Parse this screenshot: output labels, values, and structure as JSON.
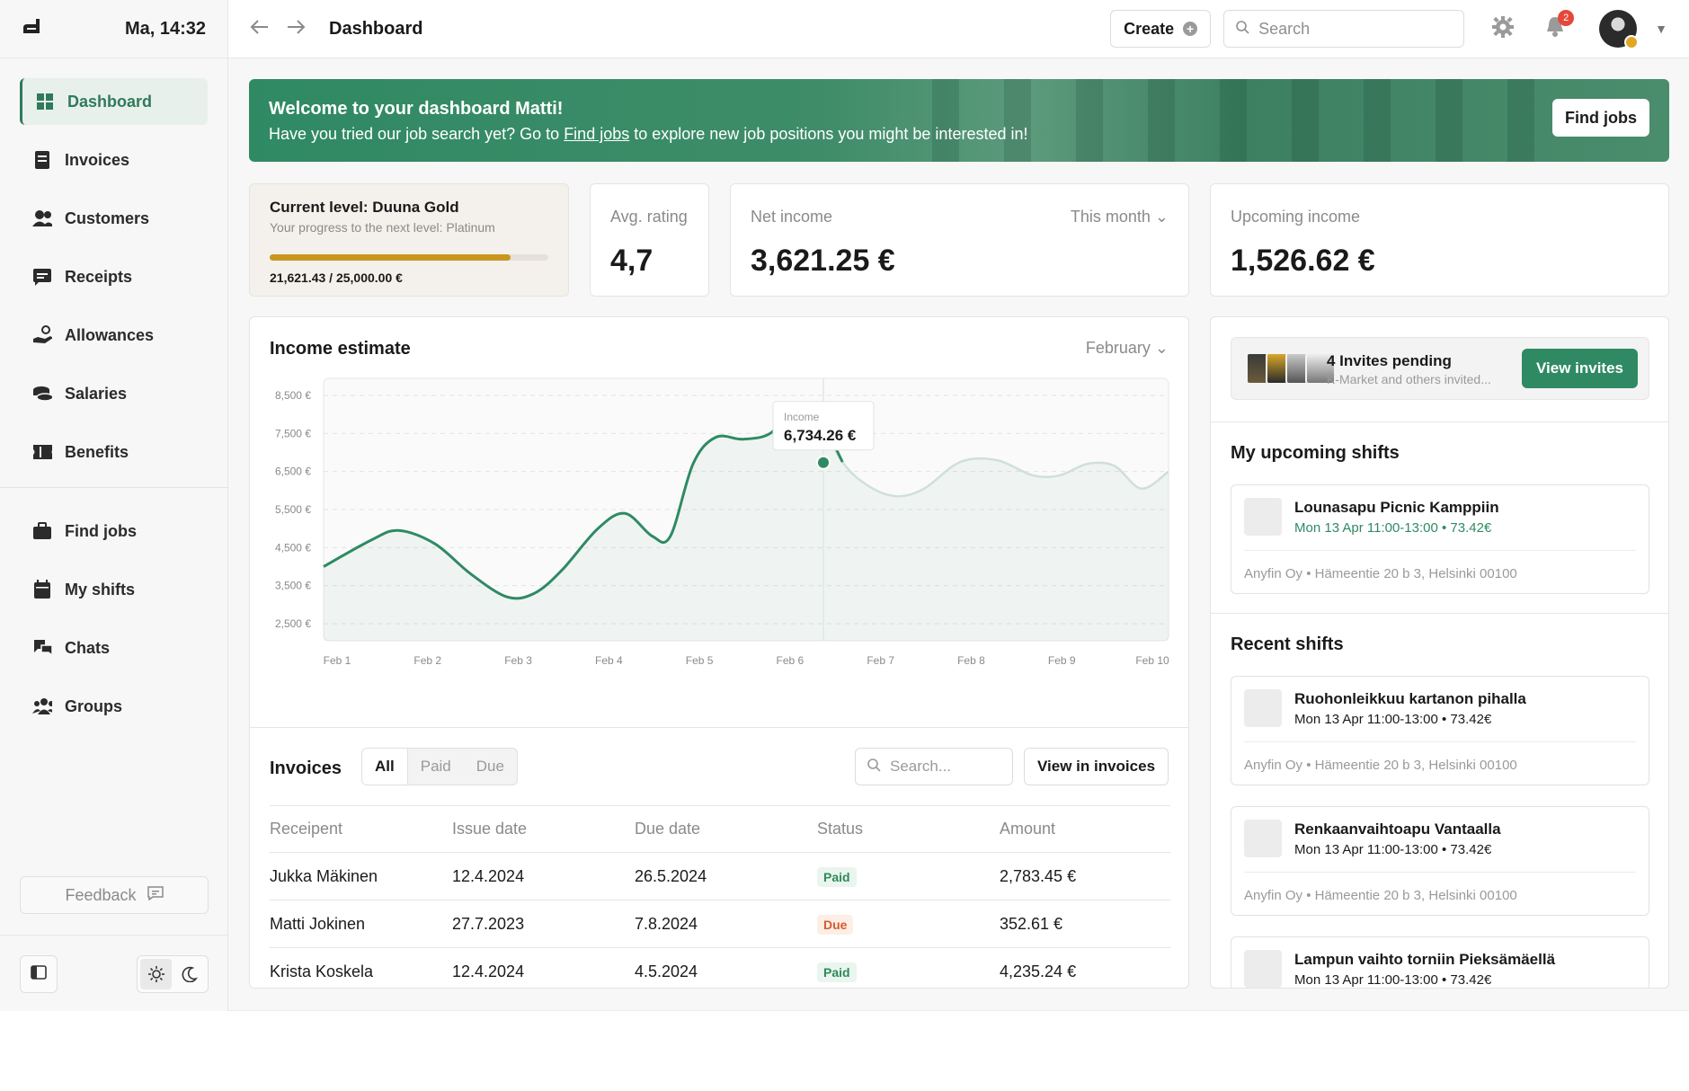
{
  "sidebar": {
    "clock": "Ma, 14:32",
    "items": [
      {
        "label": "Dashboard"
      },
      {
        "label": "Invoices"
      },
      {
        "label": "Customers"
      },
      {
        "label": "Receipts"
      },
      {
        "label": "Allowances"
      },
      {
        "label": "Salaries"
      },
      {
        "label": "Benefits"
      }
    ],
    "items2": [
      {
        "label": "Find jobs"
      },
      {
        "label": "My shifts"
      },
      {
        "label": "Chats"
      },
      {
        "label": "Groups"
      }
    ],
    "feedback": "Feedback"
  },
  "topbar": {
    "title": "Dashboard",
    "create": "Create",
    "search_placeholder": "Search",
    "notifications_count": "2"
  },
  "banner": {
    "title": "Welcome to your dashboard Matti!",
    "text_before": "Have you tried our job search yet? Go to ",
    "link": "Find jobs",
    "text_after": " to explore new job positions you might be interested in!",
    "button": "Find jobs"
  },
  "level": {
    "title": "Current level: Duuna Gold",
    "subtitle": "Your progress to the next level: Platinum",
    "progress": 0.865,
    "value": "21,621.43 / 25,000.00 €"
  },
  "stats": {
    "rating_label": "Avg. rating",
    "rating_value": "4,7",
    "net_label": "Net income",
    "net_period": "This month",
    "net_value": "3,621.25 €",
    "upcoming_label": "Upcoming income",
    "upcoming_value": "1,526.62 €"
  },
  "income": {
    "title": "Income estimate",
    "period": "February",
    "tooltip_label": "Income",
    "tooltip_value": "6,734.26 €"
  },
  "chart_data": {
    "type": "area",
    "title": "Income estimate",
    "x_ticks": [
      "Feb 1",
      "Feb 2",
      "Feb 3",
      "Feb 4",
      "Feb 5",
      "Feb 6",
      "Feb 7",
      "Feb 8",
      "Feb 9",
      "Feb 10"
    ],
    "y_ticks": [
      "8,500 €",
      "7,500 €",
      "6,500 €",
      "5,500 €",
      "4,500 €",
      "3,500 €",
      "2,500 €"
    ],
    "ylim": [
      2500,
      8500
    ],
    "highlight": {
      "x": "Feb 6.5",
      "value": 6734.26
    },
    "series": [
      {
        "x": [
          1.0,
          1.3,
          1.6,
          2.0,
          2.4,
          2.8,
          3.1,
          3.4,
          3.8,
          4.1,
          4.4,
          4.6,
          4.85,
          5.1,
          5.4,
          5.7,
          5.95,
          6.2,
          6.5,
          6.8,
          7.1,
          7.4,
          7.8,
          8.2,
          8.6,
          8.9,
          9.2,
          9.5,
          9.8,
          10.0
        ],
        "values": [
          4000,
          4700,
          4950,
          4600,
          3800,
          3200,
          3300,
          3900,
          5000,
          5400,
          4800,
          4800,
          6700,
          7400,
          7350,
          7500,
          8150,
          8100,
          6750,
          6100,
          5850,
          6050,
          6750,
          6800,
          6400,
          6400,
          6700,
          6650,
          6050,
          6500
        ]
      }
    ]
  },
  "invoices": {
    "title": "Invoices",
    "filters": [
      "All",
      "Paid",
      "Due"
    ],
    "search_placeholder": "Search...",
    "view_button": "View in invoices",
    "columns": [
      "Receipent",
      "Issue date",
      "Due date",
      "Status",
      "Amount"
    ],
    "rows": [
      {
        "name": "Jukka Mäkinen",
        "issue": "12.4.2024",
        "due": "26.5.2024",
        "status": "Paid",
        "amount": "2,783.45 €"
      },
      {
        "name": "Matti Jokinen",
        "issue": "27.7.2023",
        "due": "7.8.2024",
        "status": "Due",
        "amount": "352.61 €"
      },
      {
        "name": "Krista Koskela",
        "issue": "12.4.2024",
        "due": "4.5.2024",
        "status": "Paid",
        "amount": "4,235.24 €"
      }
    ]
  },
  "invites": {
    "title": "4 Invites pending",
    "subtitle": "K-Market and others invited...",
    "button": "View invites"
  },
  "upcoming": {
    "title": "My upcoming shifts",
    "shifts": [
      {
        "name": "Lounasapu Picnic Kamppiin",
        "time": "Mon 13 Apr 11:00-13:00  •  73.42€",
        "address": "Anyfin Oy  •  Hämeentie 20 b 3, Helsinki 00100"
      }
    ]
  },
  "recent": {
    "title": "Recent shifts",
    "shifts": [
      {
        "name": "Ruohonleikkuu kartanon pihalla",
        "time": "Mon 13 Apr 11:00-13:00  •  73.42€",
        "address": "Anyfin Oy  •  Hämeentie 20 b 3, Helsinki 00100"
      },
      {
        "name": "Renkaanvaihtoapu Vantaalla",
        "time": "Mon 13 Apr 11:00-13:00  •  73.42€",
        "address": "Anyfin Oy  •  Hämeentie 20 b 3, Helsinki 00100"
      },
      {
        "name": "Lampun vaihto torniin Pieksämäellä",
        "time": "Mon 13 Apr 11:00-13:00  •  73.42€",
        "address": ""
      }
    ]
  },
  "colors": {
    "accent": "#2f8a63",
    "gold": "#c9961f",
    "due": "#d85a2b"
  }
}
